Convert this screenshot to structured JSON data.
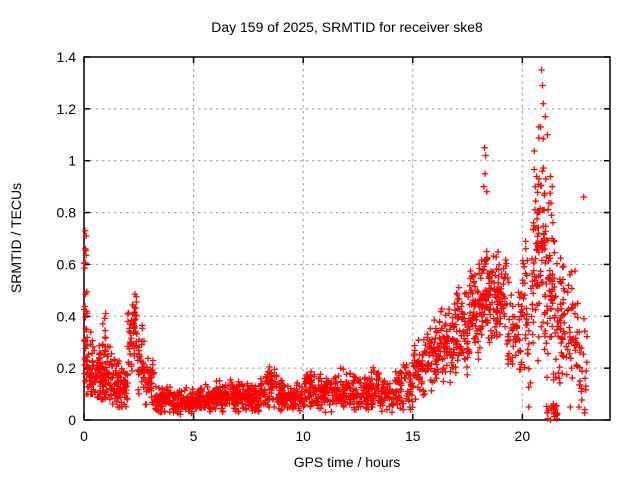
{
  "chart_data": {
    "type": "scatter",
    "title": "Day 159 of 2025, SRMTID for receiver ske8",
    "xlabel": "GPS time / hours",
    "ylabel": "SRMTID / TECUs",
    "xlim": [
      0,
      24
    ],
    "ylim": [
      0,
      1.4
    ],
    "xticks": [
      {
        "v": 0,
        "label": "0"
      },
      {
        "v": 5,
        "label": "5"
      },
      {
        "v": 10,
        "label": "10"
      },
      {
        "v": 15,
        "label": "15"
      },
      {
        "v": 20,
        "label": "20"
      }
    ],
    "yticks": [
      {
        "v": 0.0,
        "label": "0"
      },
      {
        "v": 0.2,
        "label": "0.2"
      },
      {
        "v": 0.4,
        "label": "0.4"
      },
      {
        "v": 0.6,
        "label": "0.6"
      },
      {
        "v": 0.8,
        "label": "0.8"
      },
      {
        "v": 1.0,
        "label": "1"
      },
      {
        "v": 1.2,
        "label": "1.2"
      },
      {
        "v": 1.4,
        "label": "1.4"
      }
    ],
    "grid": {
      "show": true,
      "style": "dashed",
      "color": "#9e9e9e"
    },
    "marker": {
      "shape": "plus",
      "color": "#ff0000",
      "size": 7
    },
    "legend": {
      "visible": false
    },
    "density_bin_columns": [
      "x_start",
      "x_end",
      "count",
      "y_min",
      "y_max",
      "y_center",
      "y_spread"
    ],
    "density_bins": [
      [
        0.0,
        0.15,
        22,
        0.15,
        0.68,
        0.32,
        0.16
      ],
      [
        0.0,
        0.1,
        6,
        0.55,
        0.66,
        0.6,
        0.05
      ],
      [
        0.1,
        0.5,
        55,
        0.1,
        0.4,
        0.2,
        0.08
      ],
      [
        0.5,
        0.9,
        55,
        0.08,
        0.35,
        0.17,
        0.07
      ],
      [
        0.85,
        1.0,
        7,
        0.28,
        0.48,
        0.38,
        0.08
      ],
      [
        0.9,
        1.3,
        55,
        0.08,
        0.36,
        0.18,
        0.07
      ],
      [
        1.3,
        2.0,
        85,
        0.05,
        0.3,
        0.14,
        0.06
      ],
      [
        2.0,
        2.2,
        22,
        0.15,
        0.5,
        0.3,
        0.1
      ],
      [
        2.2,
        2.45,
        30,
        0.18,
        0.57,
        0.38,
        0.11
      ],
      [
        2.45,
        2.8,
        35,
        0.1,
        0.42,
        0.22,
        0.08
      ],
      [
        2.8,
        3.2,
        38,
        0.06,
        0.3,
        0.13,
        0.06
      ],
      [
        3.2,
        4.0,
        75,
        0.03,
        0.18,
        0.08,
        0.035
      ],
      [
        4.0,
        5.0,
        105,
        0.02,
        0.14,
        0.07,
        0.03
      ],
      [
        5.0,
        6.0,
        105,
        0.03,
        0.16,
        0.08,
        0.03
      ],
      [
        6.0,
        7.0,
        105,
        0.03,
        0.17,
        0.09,
        0.035
      ],
      [
        7.0,
        8.0,
        105,
        0.03,
        0.18,
        0.09,
        0.035
      ],
      [
        8.0,
        8.3,
        28,
        0.04,
        0.2,
        0.1,
        0.04
      ],
      [
        8.3,
        8.8,
        42,
        0.05,
        0.28,
        0.13,
        0.05
      ],
      [
        8.8,
        10.0,
        115,
        0.03,
        0.18,
        0.09,
        0.035
      ],
      [
        10.0,
        10.8,
        75,
        0.04,
        0.26,
        0.12,
        0.05
      ],
      [
        10.8,
        11.6,
        75,
        0.03,
        0.2,
        0.1,
        0.04
      ],
      [
        11.6,
        12.3,
        65,
        0.05,
        0.26,
        0.12,
        0.05
      ],
      [
        12.3,
        13.0,
        65,
        0.04,
        0.22,
        0.1,
        0.04
      ],
      [
        13.0,
        13.5,
        45,
        0.05,
        0.26,
        0.12,
        0.05
      ],
      [
        13.5,
        14.2,
        55,
        0.03,
        0.2,
        0.09,
        0.04
      ],
      [
        14.2,
        15.0,
        65,
        0.04,
        0.3,
        0.13,
        0.06
      ],
      [
        15.0,
        15.6,
        55,
        0.08,
        0.4,
        0.2,
        0.07
      ],
      [
        15.6,
        16.2,
        55,
        0.1,
        0.45,
        0.25,
        0.08
      ],
      [
        16.2,
        17.0,
        75,
        0.12,
        0.52,
        0.3,
        0.09
      ],
      [
        17.0,
        17.6,
        65,
        0.15,
        0.58,
        0.35,
        0.1
      ],
      [
        17.6,
        18.2,
        75,
        0.2,
        0.68,
        0.42,
        0.11
      ],
      [
        18.2,
        18.6,
        55,
        0.25,
        0.78,
        0.5,
        0.12
      ],
      [
        18.6,
        19.3,
        75,
        0.28,
        0.72,
        0.48,
        0.1
      ],
      [
        19.3,
        20.0,
        55,
        0.1,
        0.62,
        0.35,
        0.12
      ],
      [
        20.0,
        20.5,
        45,
        0.05,
        0.9,
        0.4,
        0.2
      ],
      [
        20.5,
        21.0,
        75,
        0.2,
        1.25,
        0.7,
        0.25
      ],
      [
        21.0,
        21.5,
        75,
        0.05,
        1.2,
        0.55,
        0.26
      ],
      [
        21.1,
        21.6,
        22,
        0.0,
        0.08,
        0.03,
        0.025
      ],
      [
        21.5,
        22.1,
        55,
        0.05,
        0.75,
        0.35,
        0.17
      ],
      [
        22.1,
        22.6,
        38,
        0.05,
        0.68,
        0.3,
        0.16
      ],
      [
        22.6,
        22.95,
        22,
        0.02,
        0.45,
        0.18,
        0.12
      ]
    ],
    "highlight_points": [
      [
        0.05,
        0.73
      ],
      [
        0.1,
        0.71
      ],
      [
        18.24,
        0.9
      ],
      [
        18.28,
        1.05
      ],
      [
        18.3,
        0.95
      ],
      [
        18.33,
        1.02
      ],
      [
        18.38,
        0.88
      ],
      [
        20.84,
        1.13
      ],
      [
        20.88,
        1.35
      ],
      [
        20.92,
        1.29
      ],
      [
        20.96,
        1.22
      ],
      [
        21.05,
        1.17
      ],
      [
        21.15,
        1.1
      ],
      [
        22.8,
        0.86
      ]
    ]
  }
}
